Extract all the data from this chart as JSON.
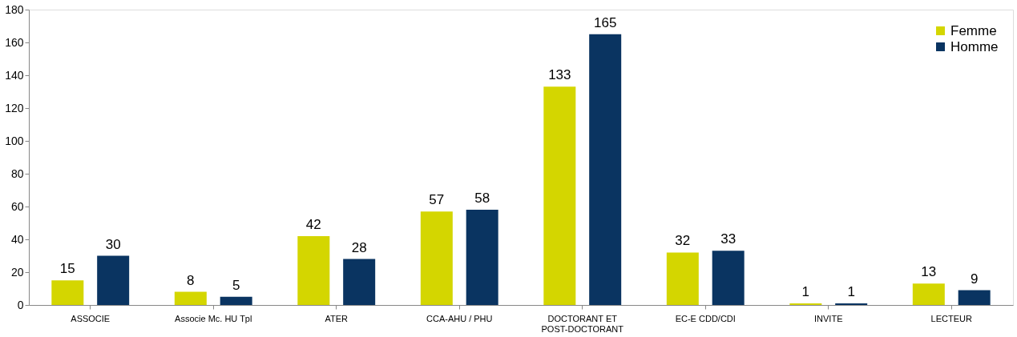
{
  "chart_data": {
    "type": "bar",
    "categories": [
      "ASSOCIE",
      "Associe Mc. HU Tpl",
      "ATER",
      "CCA-AHU / PHU",
      "DOCTORANT ET\nPOST-DOCTORANT",
      "EC-E CDD/CDI",
      "INVITE",
      "LECTEUR"
    ],
    "series": [
      {
        "name": "Femme",
        "color": "#d4d600",
        "values": [
          15,
          8,
          42,
          57,
          133,
          32,
          1,
          13
        ]
      },
      {
        "name": "Homme",
        "color": "#0a3461",
        "values": [
          30,
          5,
          28,
          58,
          165,
          33,
          1,
          9
        ]
      }
    ],
    "ylim": [
      0,
      180
    ],
    "yticks": [
      0,
      20,
      40,
      60,
      80,
      100,
      120,
      140,
      160,
      180
    ],
    "grid": false,
    "legend": "top right",
    "data_labels": true
  }
}
